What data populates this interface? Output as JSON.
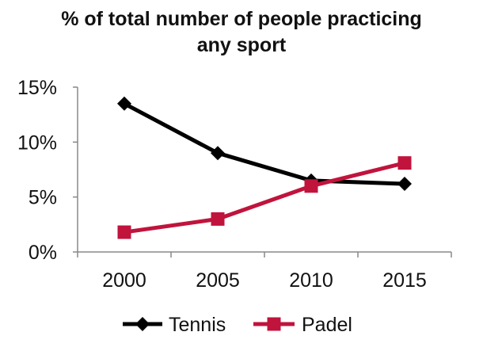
{
  "chart_data": {
    "type": "line",
    "title_line1": "% of total number of people practicing",
    "title_line2": "any sport",
    "x": [
      "2000",
      "2005",
      "2010",
      "2015"
    ],
    "y_ticks": [
      "0%",
      "5%",
      "10%",
      "15%"
    ],
    "ylim": [
      0,
      15
    ],
    "grid": false,
    "legend_position": "bottom",
    "series": [
      {
        "name": "Tennis",
        "values": [
          13.5,
          9.0,
          6.5,
          6.2
        ],
        "color": "#000000",
        "marker": "diamond"
      },
      {
        "name": "Padel",
        "values": [
          1.8,
          3.0,
          6.0,
          8.1
        ],
        "color": "#c0143c",
        "marker": "square"
      }
    ]
  }
}
